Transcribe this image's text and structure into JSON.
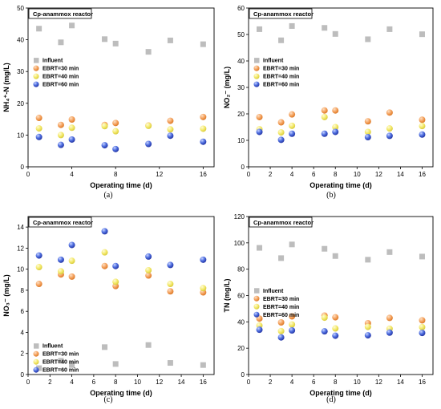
{
  "colors": {
    "influent": "#bdbdbd",
    "ebrt30": "#f4a15d",
    "ebrt40": "#f3e96a",
    "ebrt60": "#4f6fe0"
  },
  "chart_data": [
    {
      "id": "a",
      "type": "scatter",
      "caption": "(a)",
      "title": "Cp-anammox reactor",
      "xlabel": "Operating time (d)",
      "ylabel": "NH₄⁺-N  (mg/L)",
      "xlim": [
        0,
        17
      ],
      "ylim": [
        0,
        50
      ],
      "xticks": [
        0,
        4,
        8,
        12,
        16
      ],
      "yticks": [
        0,
        10,
        20,
        30,
        40,
        50
      ],
      "legend_position": "center-left",
      "series": [
        {
          "name": "Influent",
          "marker": "square",
          "color_key": "influent",
          "x": [
            1,
            3,
            4,
            7,
            8,
            11,
            13,
            16
          ],
          "y": [
            43.5,
            39.2,
            44.5,
            40.2,
            38.8,
            36.2,
            39.8,
            38.6
          ]
        },
        {
          "name": "EBRT=30 min",
          "marker": "circle",
          "color_key": "ebrt30",
          "x": [
            1,
            3,
            4,
            7,
            8,
            11,
            13,
            16
          ],
          "y": [
            15.4,
            13.2,
            14.9,
            13.2,
            13.8,
            13.0,
            14.5,
            15.7
          ]
        },
        {
          "name": "EBRT=40 min",
          "marker": "circle",
          "color_key": "ebrt40",
          "x": [
            1,
            3,
            4,
            7,
            8,
            11,
            13,
            16
          ],
          "y": [
            12.1,
            10.0,
            12.3,
            12.8,
            11.2,
            12.9,
            11.8,
            12.0
          ]
        },
        {
          "name": "EBRT=60 min",
          "marker": "circle",
          "color_key": "ebrt60",
          "x": [
            1,
            3,
            4,
            7,
            8,
            11,
            13,
            16
          ],
          "y": [
            9.4,
            6.9,
            8.6,
            6.8,
            5.6,
            7.2,
            9.8,
            7.9
          ]
        }
      ]
    },
    {
      "id": "b",
      "type": "scatter",
      "caption": "(b)",
      "title": "Cp-anammox reactor",
      "xlabel": "Operating time (d)",
      "ylabel": "NO₂⁻  (mg/L)",
      "xlim": [
        0,
        17
      ],
      "ylim": [
        0,
        60
      ],
      "xticks": [
        0,
        2,
        4,
        6,
        8,
        10,
        12,
        14,
        16
      ],
      "yticks": [
        0,
        10,
        20,
        30,
        40,
        50,
        60
      ],
      "legend_position": "center-left",
      "series": [
        {
          "name": "Influent",
          "marker": "square",
          "color_key": "influent",
          "x": [
            1,
            3,
            4,
            7,
            8,
            11,
            13,
            16
          ],
          "y": [
            52.0,
            47.8,
            53.2,
            52.5,
            50.2,
            48.2,
            52.0,
            50.1
          ]
        },
        {
          "name": "EBRT=30 min",
          "marker": "circle",
          "color_key": "ebrt30",
          "x": [
            1,
            3,
            4,
            7,
            8,
            11,
            13,
            16
          ],
          "y": [
            18.8,
            16.8,
            19.8,
            21.3,
            21.3,
            17.2,
            20.5,
            17.8
          ]
        },
        {
          "name": "EBRT=40 min",
          "marker": "circle",
          "color_key": "ebrt40",
          "x": [
            1,
            3,
            4,
            7,
            8,
            11,
            13,
            16
          ],
          "y": [
            14.2,
            13.0,
            15.5,
            18.8,
            15.0,
            13.2,
            14.5,
            15.4
          ]
        },
        {
          "name": "EBRT=60 min",
          "marker": "circle",
          "color_key": "ebrt60",
          "x": [
            1,
            3,
            4,
            7,
            8,
            11,
            13,
            16
          ],
          "y": [
            13.2,
            10.2,
            12.5,
            12.5,
            13.2,
            11.2,
            11.7,
            12.2
          ]
        }
      ]
    },
    {
      "id": "c",
      "type": "scatter",
      "caption": "(c)",
      "title": "Cp-anammox reactor",
      "xlabel": "Operating time (d)",
      "ylabel": "NO₃⁻  (mg/L)",
      "xlim": [
        0,
        17
      ],
      "ylim": [
        0,
        15
      ],
      "xticks": [
        0,
        2,
        4,
        6,
        8,
        10,
        12,
        14,
        16
      ],
      "yticks": [
        0,
        2,
        4,
        6,
        8,
        10,
        12,
        14
      ],
      "legend_position": "bottom-left",
      "series": [
        {
          "name": "Influent",
          "marker": "square",
          "color_key": "influent",
          "x": [
            1,
            3,
            4,
            7,
            8,
            11,
            13,
            16
          ],
          "y": [
            0.6,
            1.3,
            0.9,
            2.6,
            1.0,
            2.8,
            1.1,
            0.9
          ]
        },
        {
          "name": "EBRT=30 min",
          "marker": "circle",
          "color_key": "ebrt30",
          "x": [
            1,
            3,
            4,
            7,
            8,
            11,
            13,
            16
          ],
          "y": [
            8.6,
            9.5,
            9.3,
            10.3,
            8.4,
            9.4,
            7.9,
            7.8
          ]
        },
        {
          "name": "EBRT=40 min",
          "marker": "circle",
          "color_key": "ebrt40",
          "x": [
            1,
            3,
            4,
            7,
            8,
            11,
            13,
            16
          ],
          "y": [
            10.2,
            9.8,
            10.8,
            11.6,
            8.8,
            9.9,
            8.6,
            8.2
          ]
        },
        {
          "name": "EBRT=60 min",
          "marker": "circle",
          "color_key": "ebrt60",
          "x": [
            1,
            3,
            4,
            7,
            8,
            11,
            13,
            16
          ],
          "y": [
            11.3,
            10.9,
            12.3,
            13.6,
            10.3,
            11.2,
            10.4,
            10.9
          ]
        }
      ]
    },
    {
      "id": "d",
      "type": "scatter",
      "caption": "(d)",
      "title": "Cp-anammox reactor",
      "xlabel": "Operating time (d)",
      "ylabel": "TN  (mg/L)",
      "xlim": [
        0,
        17
      ],
      "ylim": [
        0,
        120
      ],
      "xticks": [
        0,
        2,
        4,
        6,
        8,
        10,
        12,
        14,
        16
      ],
      "yticks": [
        0,
        20,
        40,
        60,
        80,
        100,
        120
      ],
      "legend_position": "center-left",
      "series": [
        {
          "name": "Influent",
          "marker": "square",
          "color_key": "influent",
          "x": [
            1,
            3,
            4,
            7,
            8,
            11,
            13,
            16
          ],
          "y": [
            96.2,
            88.4,
            98.8,
            95.5,
            90.0,
            87.2,
            93.0,
            89.6
          ]
        },
        {
          "name": "EBRT=30 min",
          "marker": "circle",
          "color_key": "ebrt30",
          "x": [
            1,
            3,
            4,
            7,
            8,
            11,
            13,
            16
          ],
          "y": [
            42.5,
            39.6,
            44.2,
            44.8,
            43.5,
            39.0,
            43.0,
            41.2
          ]
        },
        {
          "name": "EBRT=40 min",
          "marker": "circle",
          "color_key": "ebrt40",
          "x": [
            1,
            3,
            4,
            7,
            8,
            11,
            13,
            16
          ],
          "y": [
            37.2,
            33.0,
            38.0,
            43.2,
            35.0,
            36.2,
            34.8,
            36.0
          ]
        },
        {
          "name": "EBRT=60 min",
          "marker": "circle",
          "color_key": "ebrt60",
          "x": [
            1,
            3,
            4,
            7,
            8,
            11,
            13,
            16
          ],
          "y": [
            34.0,
            28.2,
            33.5,
            32.8,
            29.5,
            29.8,
            31.8,
            31.6
          ]
        }
      ]
    }
  ]
}
